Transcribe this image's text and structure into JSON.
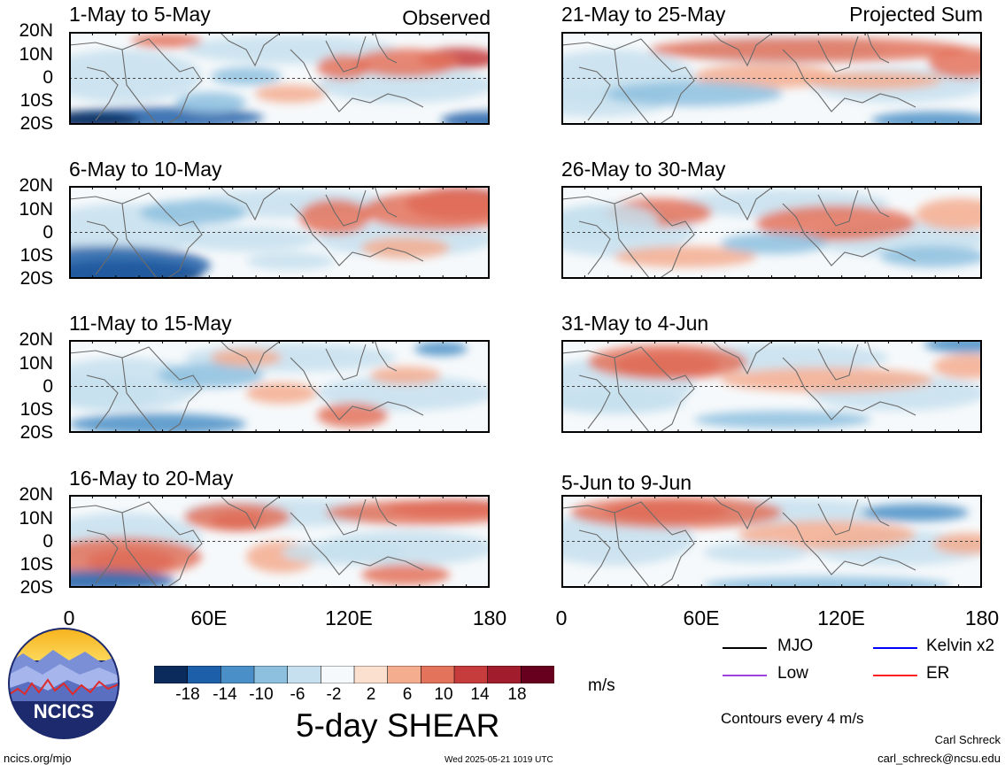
{
  "header": {
    "left_label": "Observed",
    "right_label": "Projected Sum"
  },
  "panels_left": [
    {
      "title": "1-May to 5-May"
    },
    {
      "title": "6-May to 10-May"
    },
    {
      "title": "11-May to 15-May"
    },
    {
      "title": "16-May to 20-May"
    }
  ],
  "panels_right": [
    {
      "title": "21-May to 25-May"
    },
    {
      "title": "26-May to 30-May"
    },
    {
      "title": "31-May to 4-Jun"
    },
    {
      "title": "5-Jun to 9-Jun"
    }
  ],
  "latitude_labels": [
    "20N",
    "10N",
    "0",
    "10S",
    "20S"
  ],
  "longitude_labels": [
    "0",
    "60E",
    "120E",
    "180"
  ],
  "colorbar": {
    "colors": [
      "#0a2b5c",
      "#1d5fa8",
      "#4a8fc7",
      "#8dbfdf",
      "#c7e0ef",
      "#f6f9fb",
      "#fbe0d0",
      "#f4ad8f",
      "#e4735c",
      "#c63b3b",
      "#a11c2c",
      "#67001f"
    ],
    "tick_labels": [
      "-18",
      "-14",
      "-10",
      "-6",
      "-2",
      "2",
      "6",
      "10",
      "14",
      "18"
    ],
    "units": "m/s",
    "title": "5-day SHEAR"
  },
  "legend": {
    "items": [
      {
        "label": "MJO",
        "color": "#000000"
      },
      {
        "label": "Kelvin x2",
        "color": "#0000ff"
      },
      {
        "label": "Low",
        "color": "#a040e0"
      },
      {
        "label": "ER",
        "color": "#ff2020"
      }
    ],
    "contours_note": "Contours every 4 m/s"
  },
  "footer": {
    "logo_text": "NCICS",
    "site": "ncics.org/mjo",
    "timestamp": "Wed 2025-05-21 1019 UTC",
    "author": "Carl Schreck",
    "email": "carl_schreck@ncsu.edu"
  }
}
